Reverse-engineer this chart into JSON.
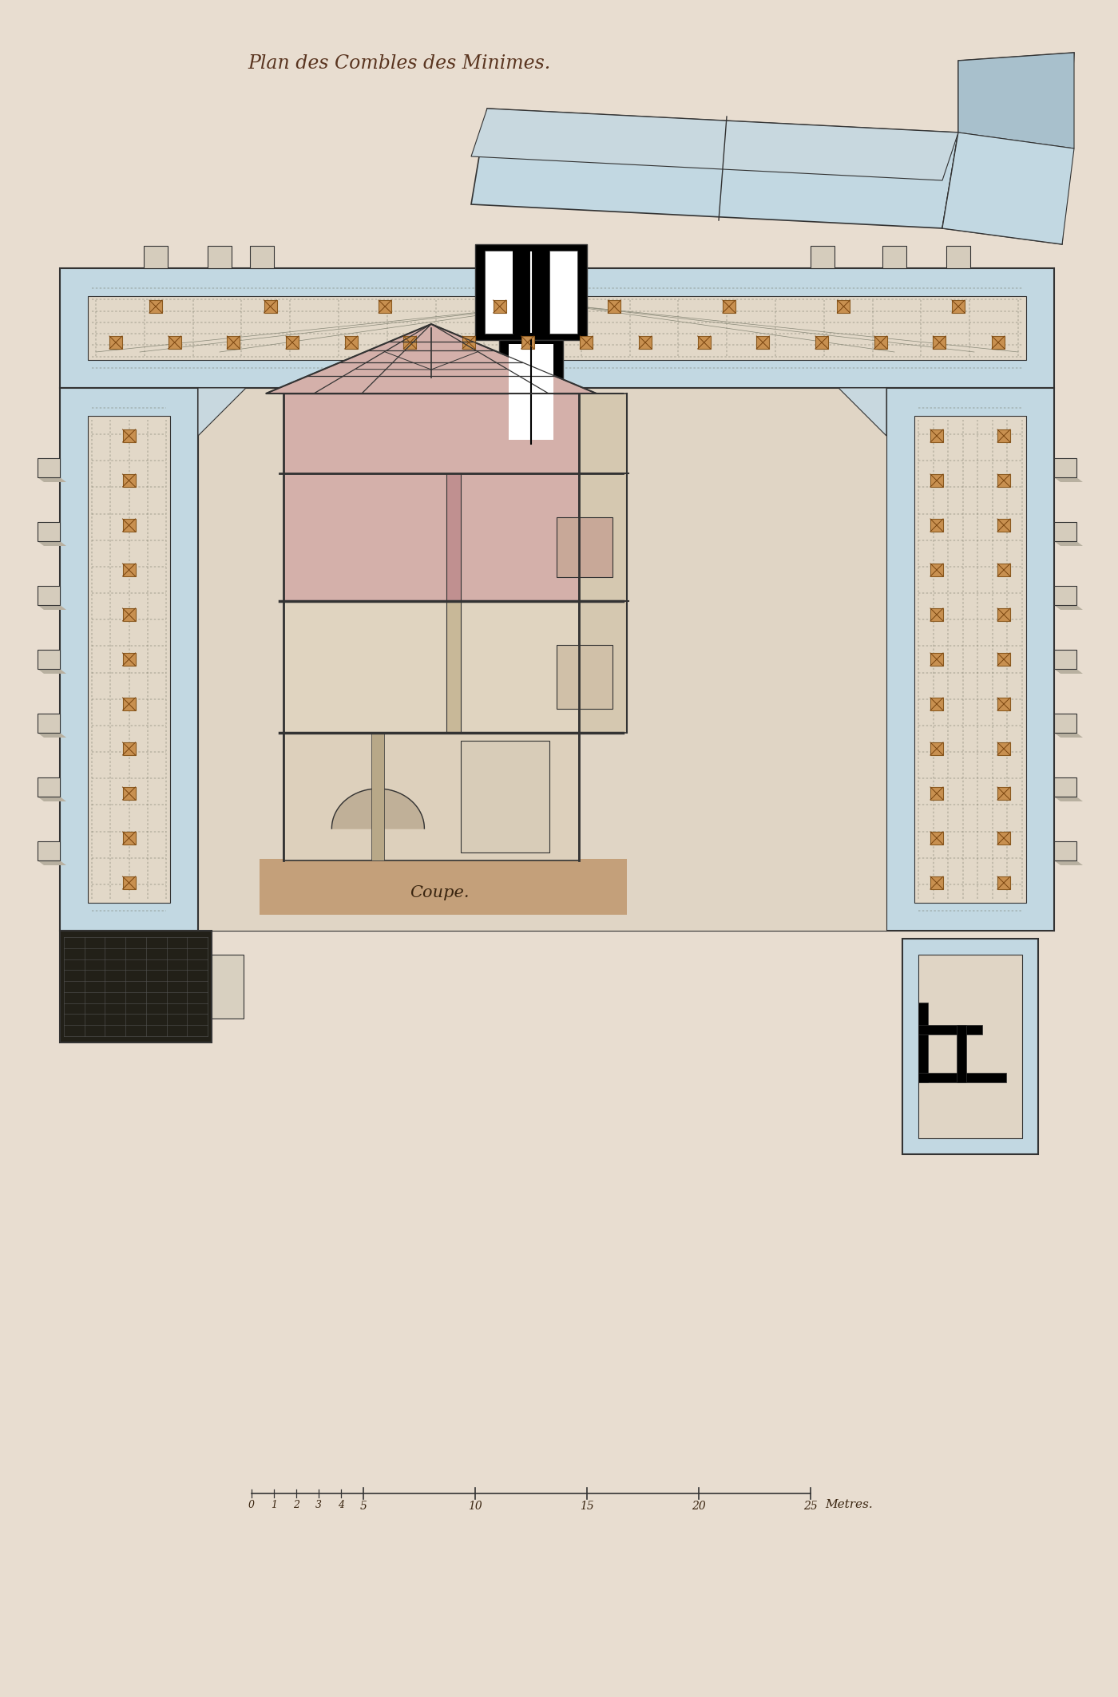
{
  "bg_color": "#e8ddd0",
  "light_blue": "#c2d8e2",
  "light_blue2": "#b0cdd8",
  "cream": "#e8ddd0",
  "tan": "#c4a07a",
  "pink": "#d4b0aa",
  "grey_brown": "#b8a898",
  "dark_grey": "#888080",
  "dark_line": "#333333",
  "title": "Plan des Combles des Minimes.",
  "coupe_label": "Coupe.",
  "scale_label": "Metres."
}
